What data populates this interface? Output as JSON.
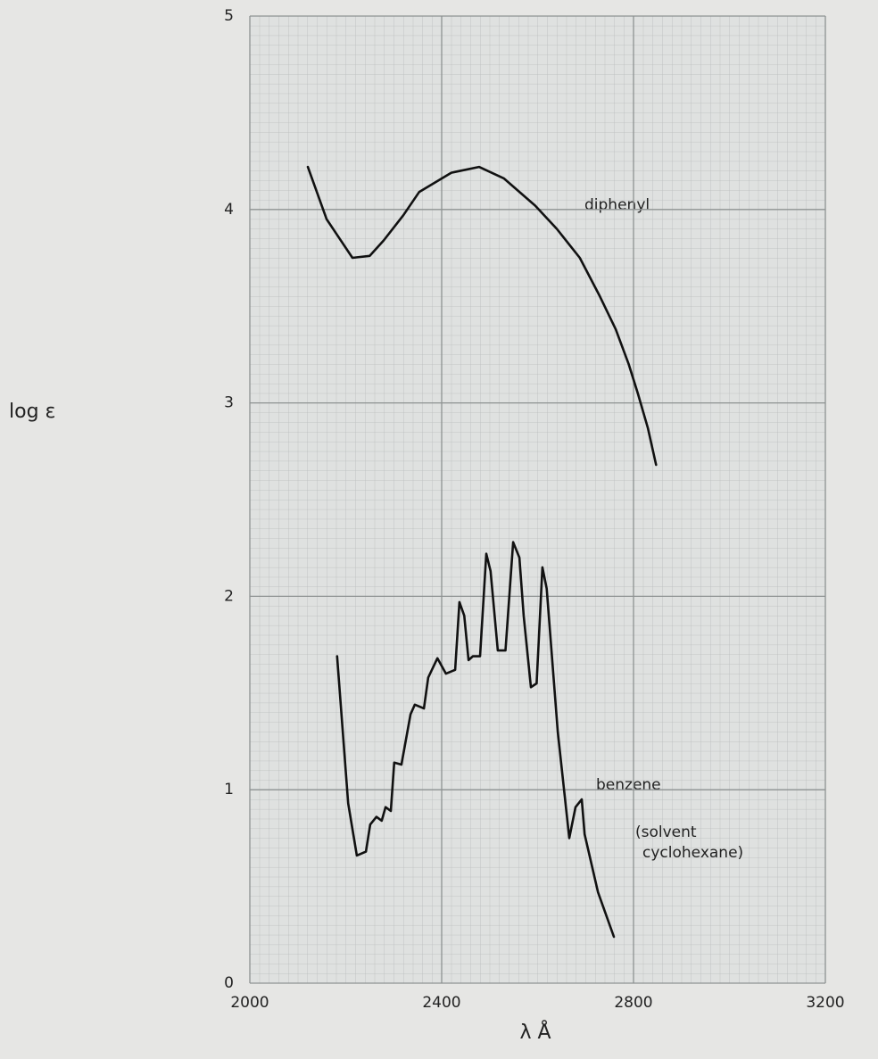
{
  "chart_data": {
    "type": "line",
    "y_label": "log ε",
    "x_label": "λ Å",
    "xlim": [
      2000,
      3200
    ],
    "xticks": [
      2000,
      2400,
      2800,
      3200
    ],
    "ylim": [
      0,
      5
    ],
    "yticks": [
      0,
      1,
      2,
      3,
      4,
      5
    ],
    "grid": true,
    "annotations": [
      "(solvent",
      "cyclohexane)"
    ],
    "series": [
      {
        "name": "diphenyl",
        "color": "#111111",
        "x": [
          2121,
          2160,
          2214,
          2250,
          2279,
          2320,
          2353,
          2420,
          2478,
          2530,
          2595,
          2640,
          2688,
          2730,
          2763,
          2790,
          2809,
          2830,
          2847
        ],
        "values": [
          4.22,
          3.95,
          3.75,
          3.76,
          3.84,
          3.97,
          4.09,
          4.19,
          4.22,
          4.16,
          4.02,
          3.9,
          3.75,
          3.55,
          3.38,
          3.2,
          3.05,
          2.87,
          2.68
        ]
      },
      {
        "name": "benzene",
        "color": "#111111",
        "x": [
          2182,
          2205,
          2223,
          2242,
          2251,
          2264,
          2275,
          2283,
          2294,
          2301,
          2316,
          2335,
          2344,
          2363,
          2372,
          2391,
          2409,
          2428,
          2437,
          2447,
          2456,
          2465,
          2480,
          2493,
          2502,
          2517,
          2533,
          2549,
          2562,
          2571,
          2586,
          2598,
          2610,
          2619,
          2642,
          2666,
          2679,
          2692,
          2698,
          2726,
          2759
        ],
        "values": [
          1.69,
          0.93,
          0.66,
          0.68,
          0.82,
          0.86,
          0.84,
          0.91,
          0.89,
          1.14,
          1.13,
          1.39,
          1.44,
          1.42,
          1.58,
          1.68,
          1.6,
          1.62,
          1.97,
          1.9,
          1.67,
          1.69,
          1.69,
          2.22,
          2.13,
          1.72,
          1.72,
          2.28,
          2.2,
          1.9,
          1.53,
          1.55,
          2.15,
          2.04,
          1.3,
          0.75,
          0.91,
          0.95,
          0.77,
          0.47,
          0.24
        ]
      }
    ]
  }
}
